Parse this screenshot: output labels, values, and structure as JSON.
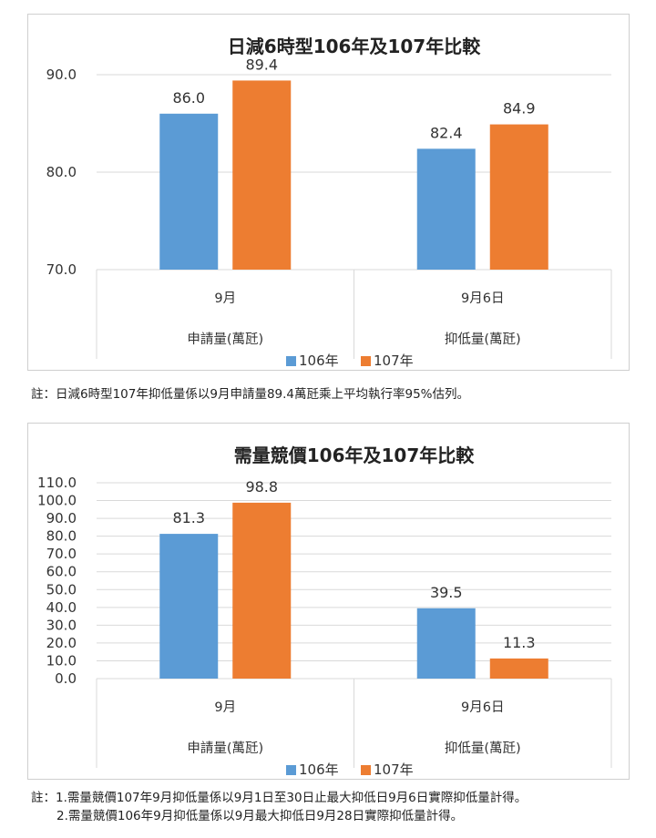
{
  "chart_data": [
    {
      "type": "bar",
      "title": "日減6時型106年及107年比較",
      "categories": [
        "9月",
        "9月6日"
      ],
      "group_label": "申請量(萬瓩)",
      "group_label_right": "抑低量(萬瓩)",
      "series": [
        {
          "name": "106年",
          "color": "#5b9bd5",
          "values": [
            86.0,
            82.4
          ]
        },
        {
          "name": "107年",
          "color": "#ed7d31",
          "values": [
            89.4,
            84.9
          ]
        }
      ],
      "ylim": [
        70,
        90
      ],
      "yticks": [
        "70.0",
        "80.0",
        "90.0"
      ],
      "data_labels": [
        [
          "86.0",
          "82.4"
        ],
        [
          "89.4",
          "84.9"
        ]
      ],
      "grid": true,
      "legend": "bottom"
    },
    {
      "type": "bar",
      "title": "需量競價106年及107年比較",
      "categories": [
        "9月",
        "9月6日"
      ],
      "group_label": "申請量(萬瓩)",
      "group_label_right": "抑低量(萬瓩)",
      "series": [
        {
          "name": "106年",
          "color": "#5b9bd5",
          "values": [
            81.3,
            39.5
          ]
        },
        {
          "name": "107年",
          "color": "#ed7d31",
          "values": [
            98.8,
            11.3
          ]
        }
      ],
      "ylim": [
        0,
        110
      ],
      "yticks": [
        "0.0",
        "10.0",
        "20.0",
        "30.0",
        "40.0",
        "50.0",
        "60.0",
        "70.0",
        "80.0",
        "90.0",
        "100.0",
        "110.0"
      ],
      "data_labels": [
        [
          "81.3",
          "39.5"
        ],
        [
          "98.8",
          "11.3"
        ]
      ],
      "grid": true,
      "legend": "bottom"
    }
  ],
  "notes": {
    "note1": "註：日減6時型107年抑低量係以9月申請量89.4萬瓩乘上平均執行率95%估列。",
    "note2_line1": "註：1.需量競價107年9月抑低量係以9月1日至30日止最大抑低日9月6日實際抑低量計得。",
    "note2_line2": "2.需量競價106年9月抑低量係以9月最大抑低日9月28日實際抑低量計得。"
  }
}
